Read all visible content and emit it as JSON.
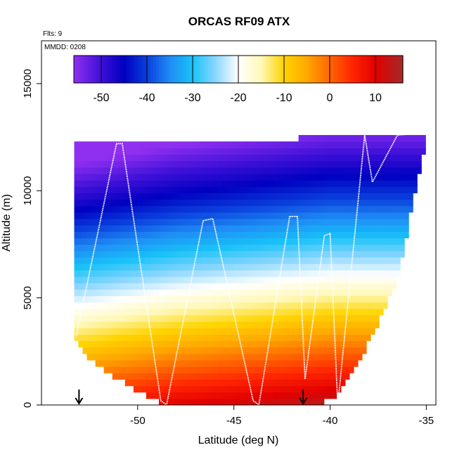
{
  "chart_data": {
    "type": "heatmap",
    "title": "ORCAS RF09 ATX",
    "subtitle_flights": "Flts: 9",
    "subtitle_date": "MMDD: 0208",
    "xlabel": "Latitude (deg N)",
    "ylabel": "Altitude (m)",
    "xlim": [
      -55,
      -34.5
    ],
    "ylim": [
      0,
      17000
    ],
    "x_ticks": [
      -50,
      -45,
      -40,
      -35
    ],
    "x_tick_labels": [
      "-50",
      "-45",
      "-40",
      "-35"
    ],
    "y_ticks": [
      0,
      5000,
      10000,
      15000
    ],
    "y_tick_labels": [
      "0",
      "5000",
      "10000",
      "15000"
    ],
    "colorbar": {
      "min": -56,
      "max": 16,
      "ticks": [
        -50,
        -40,
        -30,
        -20,
        -10,
        0,
        10
      ],
      "tick_labels": [
        "-50",
        "-40",
        "-30",
        "-20",
        "-10",
        "0",
        "10"
      ],
      "color_stops": [
        {
          "v": -56,
          "c": "#8f2ff0"
        },
        {
          "v": -50,
          "c": "#3d10d8"
        },
        {
          "v": -45,
          "c": "#0000c0"
        },
        {
          "v": -40,
          "c": "#0a3fdd"
        },
        {
          "v": -35,
          "c": "#1f8cf5"
        },
        {
          "v": -30,
          "c": "#18c2f8"
        },
        {
          "v": -25,
          "c": "#8ad6ff"
        },
        {
          "v": -20,
          "c": "#ffffff"
        },
        {
          "v": -15,
          "c": "#fff8b8"
        },
        {
          "v": -10,
          "c": "#ffd400"
        },
        {
          "v": -5,
          "c": "#ffa800"
        },
        {
          "v": 0,
          "c": "#ff6600"
        },
        {
          "v": 5,
          "c": "#ff2500"
        },
        {
          "v": 10,
          "c": "#e20000"
        },
        {
          "v": 16,
          "c": "#a52a2a"
        }
      ]
    },
    "temperature_model": {
      "surface_temp_at_lat": [
        [
          -53,
          6
        ],
        [
          -48,
          10
        ],
        [
          -44,
          12
        ],
        [
          -40,
          14
        ]
      ],
      "lapse_rate_per_km": -5.6
    },
    "coverage_envelope": {
      "lats": [
        -53.3,
        -52.6,
        -52.0,
        -51.0,
        -50.0,
        -48.5,
        -46.0,
        -45.0,
        -44.0,
        -42.0,
        -40.5,
        -39.5,
        -38.5,
        -37.5,
        -36.5,
        -35.8,
        -35.0
      ],
      "bottom_alt": [
        3000,
        2300,
        1800,
        1200,
        600,
        0,
        0,
        0,
        0,
        0,
        0,
        600,
        2000,
        3800,
        5800,
        9000,
        12500
      ],
      "top_alt": [
        12300,
        12300,
        12300,
        12300,
        12300,
        12300,
        12300,
        12300,
        12400,
        12400,
        12600,
        12700,
        12700,
        12700,
        12700,
        12700,
        12700
      ]
    },
    "flight_track": {
      "lats": [
        -53.2,
        -51.1,
        -50.8,
        -48.8,
        -48.5,
        -46.6,
        -46.1,
        -44.0,
        -43.7,
        -42.1,
        -41.7,
        -41.3,
        -40.3,
        -40.0,
        -39.6,
        -38.2,
        -37.8,
        -36.5,
        -35.0
      ],
      "alts": [
        3200,
        12200,
        12200,
        200,
        0,
        8600,
        8700,
        200,
        0,
        8800,
        8800,
        1200,
        7900,
        8000,
        0,
        12600,
        10400,
        12600,
        12700
      ]
    },
    "arrow_markers": [
      {
        "lat": -53.05
      },
      {
        "lat": -41.4
      }
    ]
  }
}
